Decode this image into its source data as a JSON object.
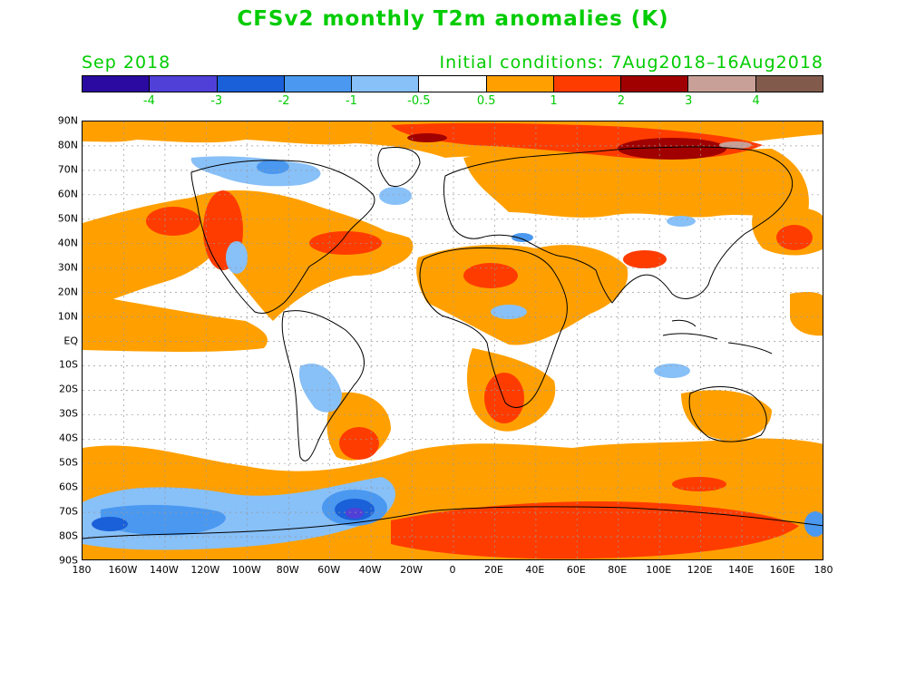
{
  "title": "CFSv2 monthly T2m anomalies (K)",
  "valid_month": "Sep 2018",
  "initial_conditions": "Initial conditions: 7Aug2018–16Aug2018",
  "colorbar": {
    "colors": [
      "#2a0aa0",
      "#5040d8",
      "#1a60d8",
      "#4a98f0",
      "#88c0f8",
      "#ffffff",
      "#ffa000",
      "#ff3c00",
      "#a00000",
      "#c8a098",
      "#825a4c"
    ],
    "labels": [
      "-4",
      "-3",
      "-2",
      "-1",
      "-0.5",
      "0.5",
      "1",
      "2",
      "3",
      "4"
    ]
  },
  "lat_labels": [
    "90N",
    "80N",
    "70N",
    "60N",
    "50N",
    "40N",
    "30N",
    "20N",
    "10N",
    "EQ",
    "10S",
    "20S",
    "30S",
    "40S",
    "50S",
    "60S",
    "70S",
    "80S",
    "90S"
  ],
  "lon_labels": [
    "180",
    "160W",
    "140W",
    "120W",
    "100W",
    "80W",
    "60W",
    "40W",
    "20W",
    "0",
    "20E",
    "40E",
    "60E",
    "80E",
    "100E",
    "120E",
    "140E",
    "160E",
    "180"
  ]
}
